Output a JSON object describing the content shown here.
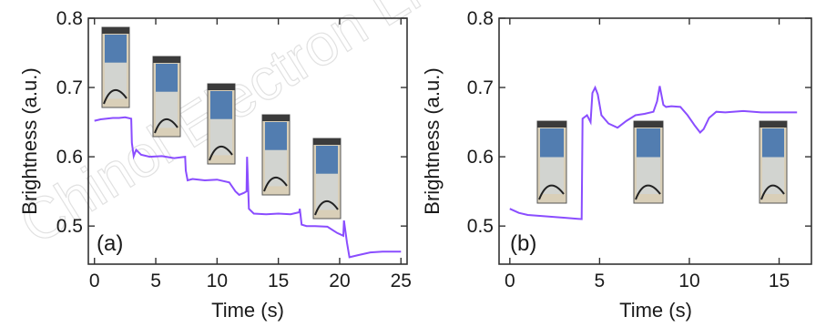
{
  "watermark_text": "Chinol Electron Li",
  "colors": {
    "line": "#8a4dff",
    "axis": "#333333",
    "bg": "#ffffff"
  },
  "chart_data": [
    {
      "type": "line",
      "panel_label": "(a)",
      "xlabel": "Time (s)",
      "ylabel": "Brightness (a.u.)",
      "xlim": [
        -0.5,
        25.5
      ],
      "ylim": [
        0.445,
        0.8
      ],
      "xticks": [
        "0",
        "5",
        "10",
        "15",
        "20",
        "25"
      ],
      "xtick_values": [
        0,
        5,
        10,
        15,
        20,
        25
      ],
      "yticks": [
        "0.5",
        "0.6",
        "0.7",
        "0.8"
      ],
      "ytick_values": [
        0.5,
        0.6,
        0.7,
        0.8
      ],
      "insets": [
        "vial photo",
        "vial photo",
        "vial photo",
        "vial photo",
        "vial photo"
      ],
      "series": [
        {
          "x": [
            0,
            0.5,
            1,
            1.5,
            2,
            2.5,
            3.0,
            3.05,
            3.2,
            3.4,
            3.8,
            4.5,
            5.5,
            6.5,
            7.4,
            7.45,
            7.6,
            8.0,
            9.0,
            10.0,
            11.0,
            11.5,
            11.8,
            12.2,
            12.4,
            12.45,
            12.6,
            13.0,
            14.0,
            15.0,
            16.0,
            16.7,
            16.75,
            16.9,
            17.3,
            18.0,
            19.0,
            19.8,
            20.3,
            20.35,
            20.6,
            20.8,
            21.5,
            22.5,
            23.5,
            24.5,
            25.0
          ],
          "y": [
            0.652,
            0.654,
            0.655,
            0.656,
            0.656,
            0.657,
            0.655,
            0.62,
            0.601,
            0.61,
            0.603,
            0.6,
            0.601,
            0.598,
            0.6,
            0.58,
            0.566,
            0.568,
            0.566,
            0.567,
            0.563,
            0.55,
            0.545,
            0.548,
            0.55,
            0.6,
            0.525,
            0.518,
            0.517,
            0.518,
            0.517,
            0.52,
            0.525,
            0.502,
            0.5,
            0.5,
            0.499,
            0.49,
            0.486,
            0.508,
            0.476,
            0.455,
            0.458,
            0.462,
            0.463,
            0.463,
            0.463
          ]
        }
      ]
    },
    {
      "type": "line",
      "panel_label": "(b)",
      "xlabel": "Time (s)",
      "ylabel": "Brightness (a.u.)",
      "xlim": [
        -0.6,
        16.8
      ],
      "ylim": [
        0.445,
        0.8
      ],
      "xticks": [
        "0",
        "5",
        "10",
        "15"
      ],
      "xtick_values": [
        0,
        5,
        10,
        15
      ],
      "yticks": [
        "0.5",
        "0.6",
        "0.7",
        "0.8"
      ],
      "ytick_values": [
        0.5,
        0.6,
        0.7,
        0.8
      ],
      "insets": [
        "vial photo",
        "vial photo",
        "vial photo"
      ],
      "series": [
        {
          "x": [
            0,
            0.5,
            1,
            2,
            3,
            4.0,
            4.05,
            4.3,
            4.5,
            4.6,
            4.75,
            4.9,
            5.1,
            5.5,
            6.0,
            6.5,
            7.0,
            7.5,
            8.0,
            8.2,
            8.35,
            8.55,
            8.7,
            9.0,
            9.5,
            9.9,
            10.3,
            10.6,
            10.8,
            11.1,
            11.5,
            12.0,
            13.0,
            14.0,
            15.0,
            16.0
          ],
          "y": [
            0.525,
            0.519,
            0.516,
            0.514,
            0.512,
            0.51,
            0.655,
            0.66,
            0.65,
            0.692,
            0.7,
            0.69,
            0.66,
            0.648,
            0.642,
            0.652,
            0.66,
            0.662,
            0.665,
            0.68,
            0.702,
            0.675,
            0.672,
            0.673,
            0.672,
            0.66,
            0.645,
            0.635,
            0.64,
            0.656,
            0.665,
            0.664,
            0.666,
            0.664,
            0.664,
            0.664
          ]
        }
      ]
    }
  ]
}
